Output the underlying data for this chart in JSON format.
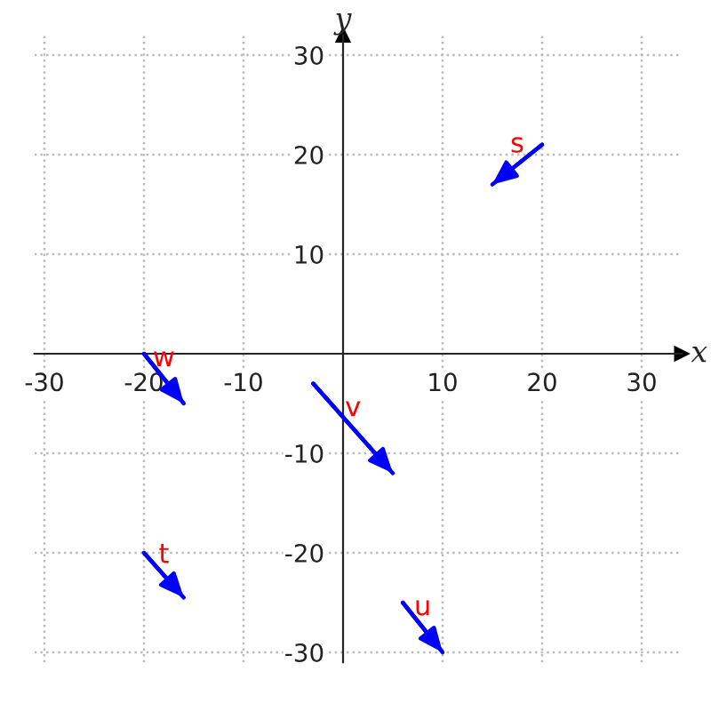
{
  "chart_data": {
    "type": "line",
    "xlabel": "x",
    "ylabel": "y",
    "xlim": [
      -31,
      34
    ],
    "ylim": [
      -31,
      32
    ],
    "xticks": [
      -30,
      -20,
      -10,
      10,
      20,
      30
    ],
    "yticks": [
      -30,
      -20,
      -10,
      10,
      20,
      30
    ],
    "grid": true,
    "marker": "none",
    "line_style": "solid",
    "series": [
      {
        "name": "s",
        "color": "#0000ff",
        "x": [
          20,
          15
        ],
        "values": [
          21,
          17
        ]
      },
      {
        "name": "t",
        "color": "#0000ff",
        "x": [
          -20,
          -16
        ],
        "values": [
          -20,
          -24.5
        ]
      },
      {
        "name": "u",
        "color": "#0000ff",
        "x": [
          6,
          10
        ],
        "values": [
          -25,
          -30
        ]
      },
      {
        "name": "v",
        "color": "#0000ff",
        "x": [
          -3,
          5
        ],
        "values": [
          -3,
          -12
        ]
      },
      {
        "name": "w",
        "color": "#0000ff",
        "x": [
          -20,
          -16
        ],
        "values": [
          0,
          -5
        ]
      }
    ]
  }
}
